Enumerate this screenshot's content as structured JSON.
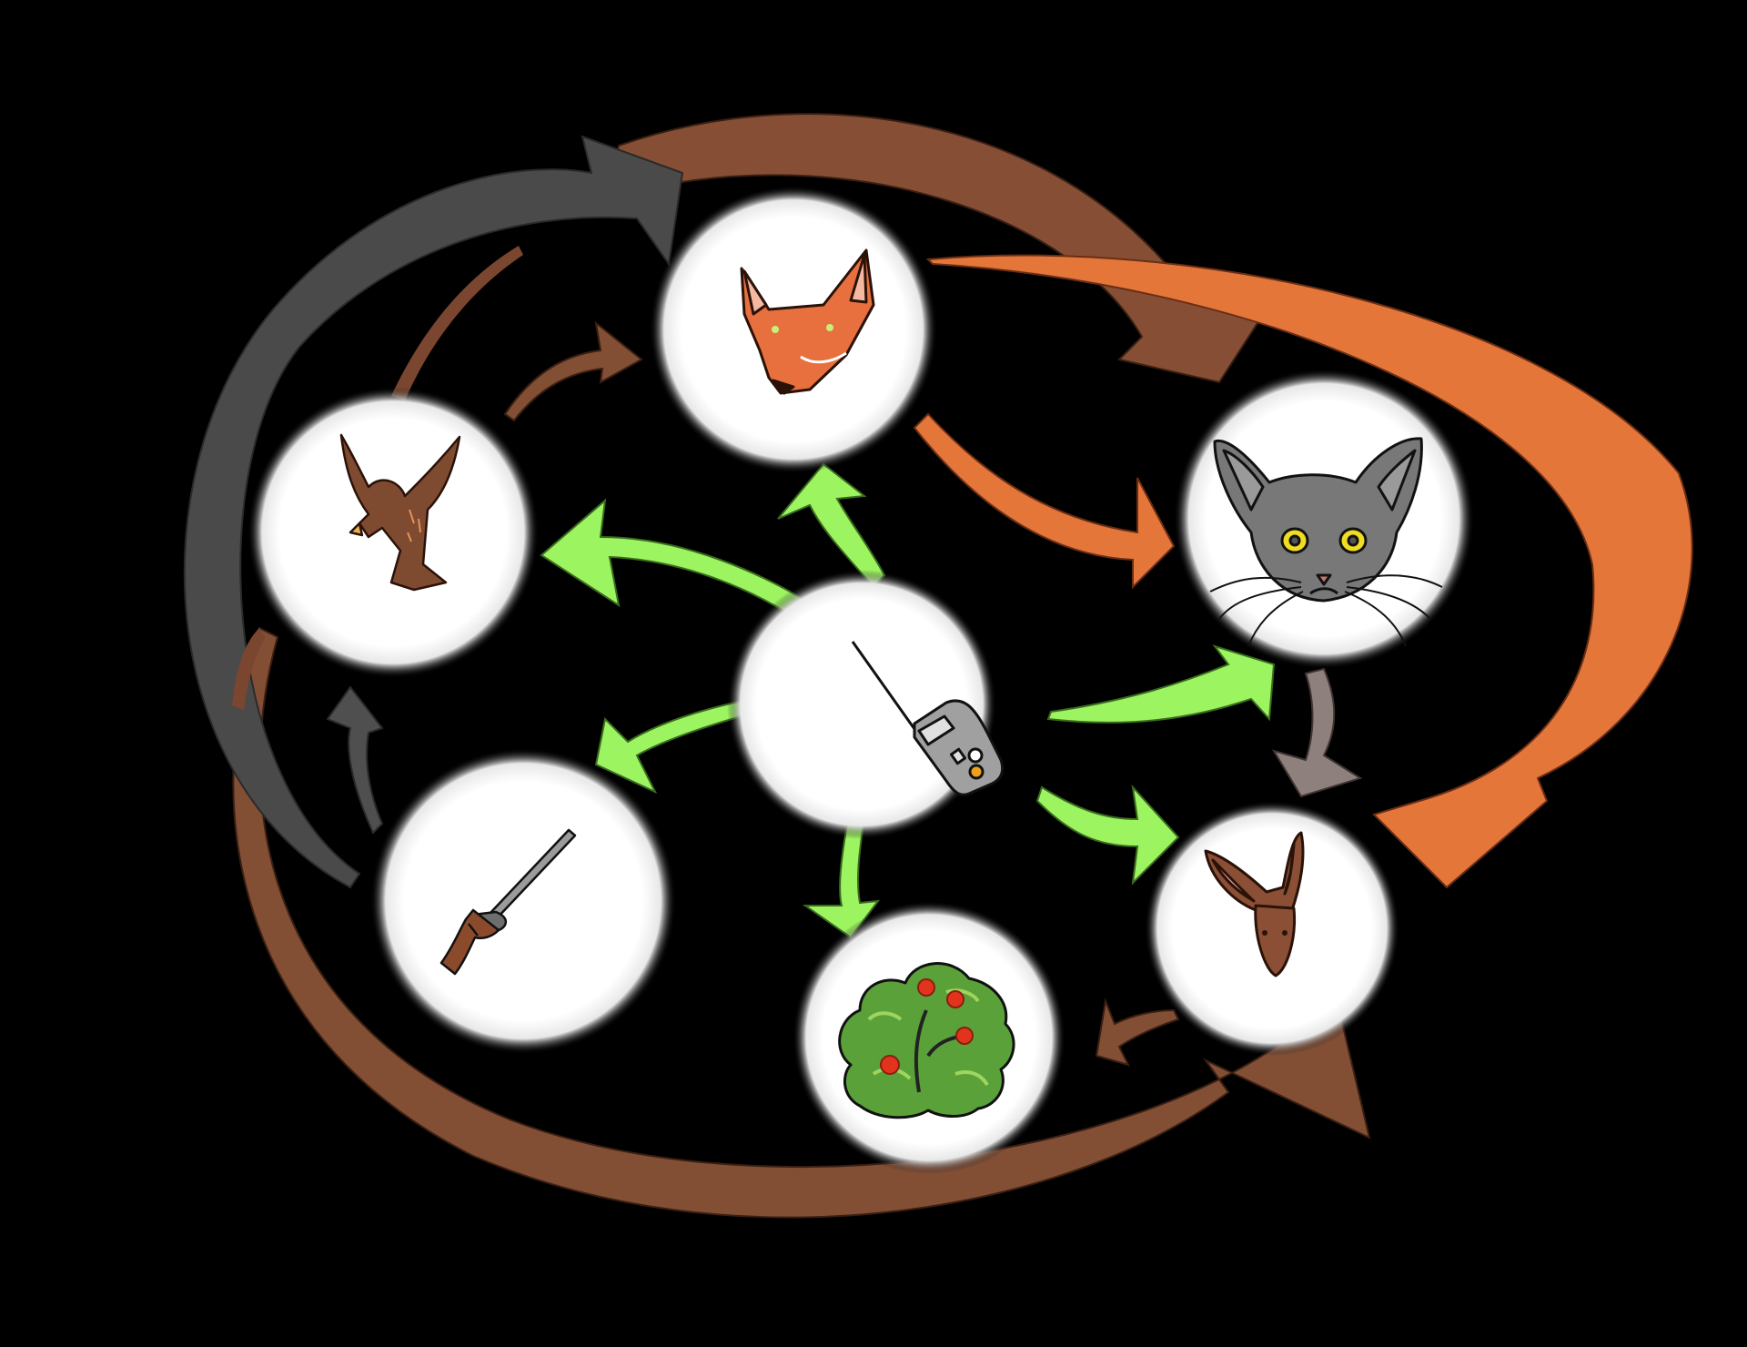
{
  "diagram": {
    "background": "#000000",
    "colors": {
      "brown": "#8a4f35",
      "dark_brown": "#7b4630",
      "gray": "#4c4c4c",
      "orange": "#e5763a",
      "green": "#9cf560",
      "taupe": "#8e817d",
      "node_fill": "#ffffff"
    },
    "nodes": [
      {
        "id": "fox",
        "icon": "fox-icon"
      },
      {
        "id": "hawk",
        "icon": "hawk-icon"
      },
      {
        "id": "cat",
        "icon": "cat-icon"
      },
      {
        "id": "tracker",
        "icon": "radio-tracker-icon"
      },
      {
        "id": "rifle",
        "icon": "rifle-icon"
      },
      {
        "id": "rabbit",
        "icon": "rabbit-icon"
      },
      {
        "id": "bush",
        "icon": "berry-bush-icon"
      }
    ],
    "edges": [
      {
        "from": "tracker",
        "to": "fox",
        "color": "green"
      },
      {
        "from": "tracker",
        "to": "hawk",
        "color": "green"
      },
      {
        "from": "tracker",
        "to": "cat",
        "color": "green"
      },
      {
        "from": "tracker",
        "to": "rifle",
        "color": "green"
      },
      {
        "from": "tracker",
        "to": "rabbit",
        "color": "green"
      },
      {
        "from": "tracker",
        "to": "bush",
        "color": "green"
      },
      {
        "from": "hawk",
        "to": "fox",
        "color": "brown"
      },
      {
        "from": "rifle",
        "to": "hawk",
        "color": "gray"
      },
      {
        "from": "rifle",
        "to": "fox",
        "color": "gray"
      },
      {
        "from": "hawk",
        "to": "cat",
        "color": "brown"
      },
      {
        "from": "fox",
        "to": "cat",
        "color": "orange"
      },
      {
        "from": "fox",
        "to": "rabbit",
        "color": "orange"
      },
      {
        "from": "cat",
        "to": "rabbit",
        "color": "taupe"
      },
      {
        "from": "rabbit",
        "to": "bush",
        "color": "brown"
      },
      {
        "from": "hawk",
        "to": "rabbit",
        "color": "brown"
      }
    ]
  }
}
